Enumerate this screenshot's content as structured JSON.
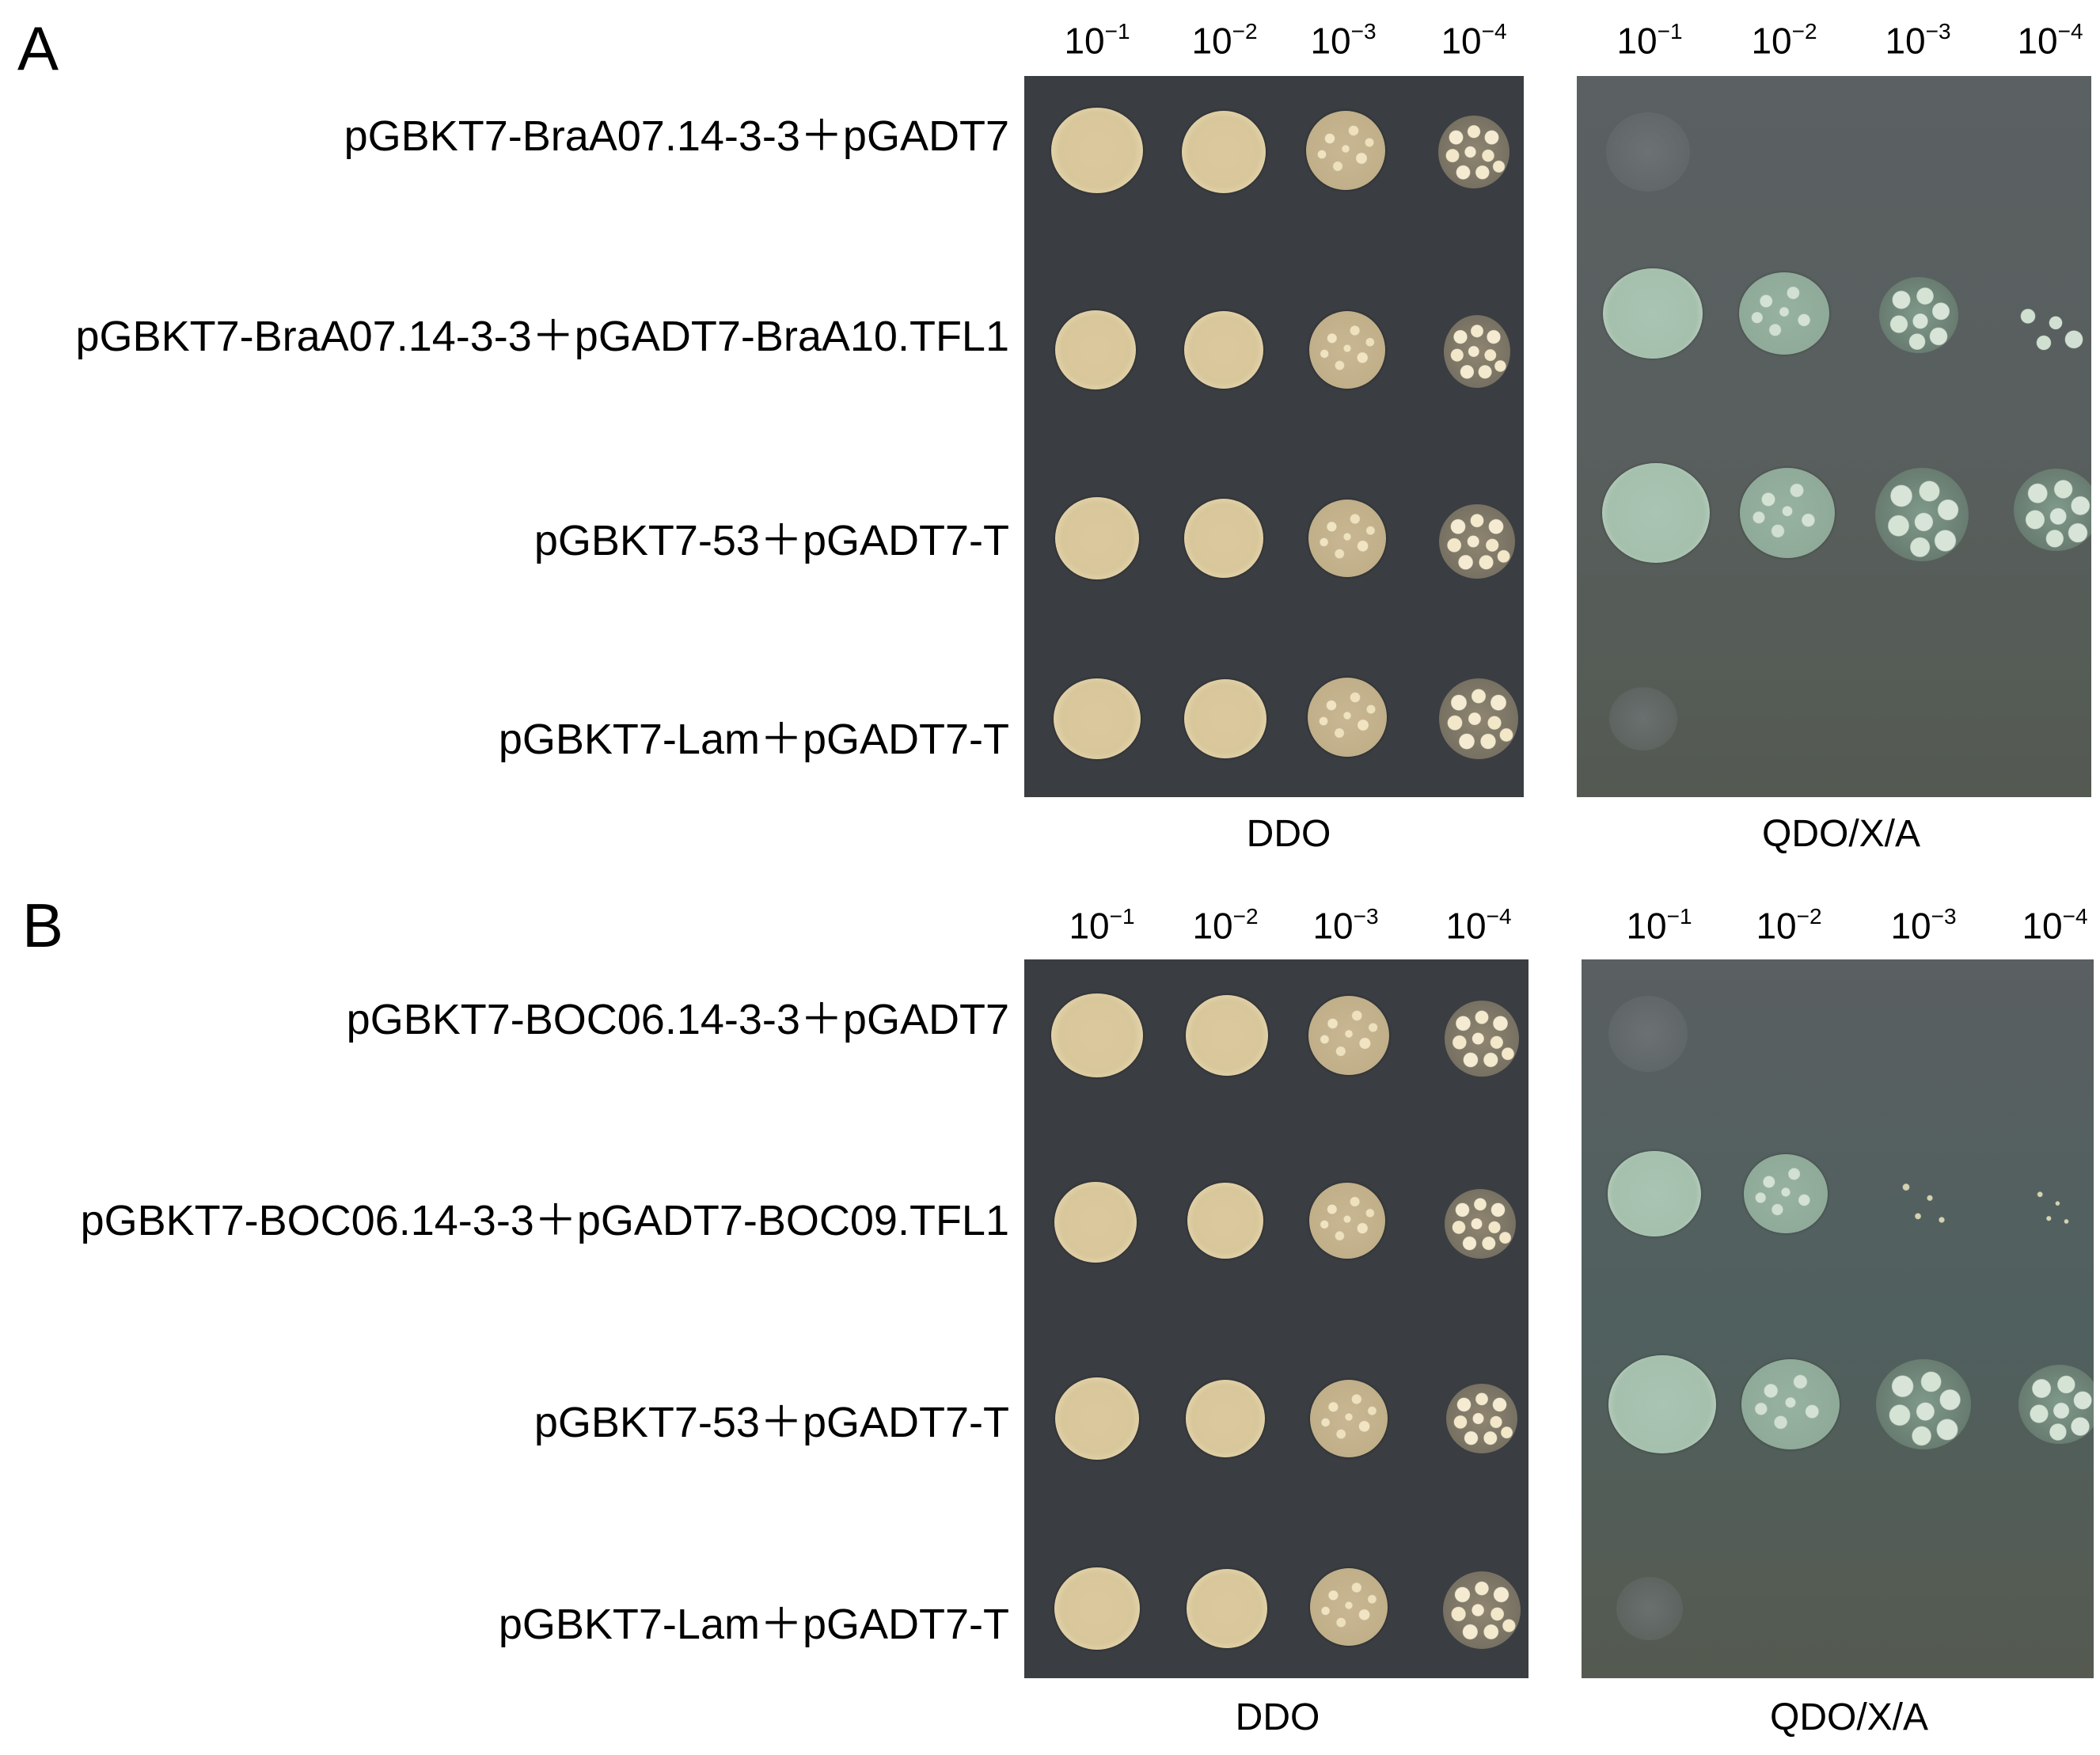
{
  "panels": [
    {
      "letter": "A",
      "ddo_dilutions": [
        "10",
        "10",
        "10",
        "10"
      ],
      "ddo_exponents": [
        "−1",
        "−2",
        "−3",
        "−4"
      ],
      "qdo_dilutions": [
        "10",
        "10",
        "10",
        "10"
      ],
      "qdo_exponents": [
        "−1",
        "−2",
        "−3",
        "−4"
      ],
      "rows": [
        "pGBKT7-BraA07.14-3-3＋pGADT7",
        "pGBKT7-BraA07.14-3-3＋pGADT7-BraA10.TFL1",
        "pGBKT7-53＋pGADT7-T",
        "pGBKT7-Lam＋pGADT7-T"
      ],
      "ddo_label": "DDO",
      "qdo_label": "QDO/X/A"
    },
    {
      "letter": "B",
      "ddo_dilutions": [
        "10",
        "10",
        "10",
        "10"
      ],
      "ddo_exponents": [
        "−1",
        "−2",
        "−3",
        "−4"
      ],
      "qdo_dilutions": [
        "10",
        "10",
        "10",
        "10"
      ],
      "qdo_exponents": [
        "−1",
        "−2",
        "−3",
        "−4"
      ],
      "rows": [
        "pGBKT7-BOC06.14-3-3＋pGADT7",
        "pGBKT7-BOC06.14-3-3＋pGADT7-BOC09.TFL1",
        "pGBKT7-53＋pGADT7-T",
        "pGBKT7-Lam＋pGADT7-T"
      ],
      "ddo_label": "DDO",
      "qdo_label": "QDO/X/A"
    }
  ],
  "colors": {
    "ddo_plate": "#3a3d41",
    "qdo_plate": "#585f5e",
    "ddo_colony": "#dcc89d",
    "qdo_colony": "#a9c4b2"
  }
}
